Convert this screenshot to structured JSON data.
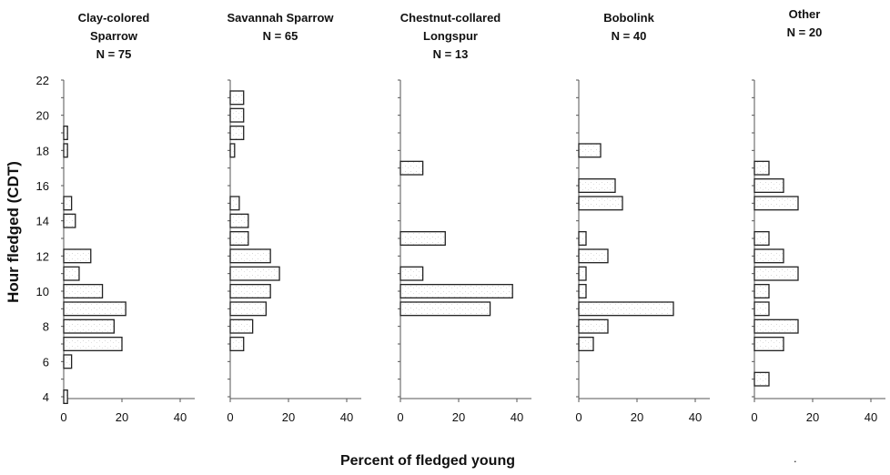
{
  "figure": {
    "ylabel": "Hour fledged (CDT)",
    "xlabel": "Percent of fledged young",
    "stray_mark": "."
  },
  "chart_data": [
    {
      "type": "bar",
      "orientation": "horizontal",
      "title_lines": [
        "Clay-colored",
        "Sparrow",
        "N = 75"
      ],
      "x": [
        4,
        6,
        7,
        8,
        9,
        10,
        11,
        12,
        14,
        15,
        18,
        19
      ],
      "values": [
        1.3,
        2.7,
        20,
        17.3,
        21.3,
        13.3,
        5.3,
        9.3,
        4,
        2.7,
        1.3,
        1.3
      ],
      "xlim": [
        0,
        45
      ],
      "xticks": [
        0,
        20,
        40
      ],
      "ylim": [
        4,
        22
      ],
      "yticks": [
        4,
        6,
        8,
        10,
        12,
        14,
        16,
        18,
        20,
        22
      ],
      "grid": false
    },
    {
      "type": "bar",
      "orientation": "horizontal",
      "title_lines": [
        "Savannah Sparrow",
        "N = 65"
      ],
      "x": [
        7,
        8,
        9,
        10,
        11,
        12,
        13,
        14,
        15,
        18,
        19,
        20,
        21
      ],
      "values": [
        4.6,
        7.7,
        12.3,
        13.8,
        16.9,
        13.8,
        6.2,
        6.2,
        3.1,
        1.5,
        4.6,
        4.6,
        4.6
      ],
      "xlim": [
        0,
        45
      ],
      "xticks": [
        0,
        20,
        40
      ],
      "ylim": [
        4,
        22
      ],
      "yticks": [
        4,
        6,
        8,
        10,
        12,
        14,
        16,
        18,
        20,
        22
      ],
      "grid": false
    },
    {
      "type": "bar",
      "orientation": "horizontal",
      "title_lines": [
        "Chestnut-collared",
        "Longspur",
        "N = 13"
      ],
      "x": [
        9,
        10,
        11,
        13,
        17
      ],
      "values": [
        30.8,
        38.5,
        7.7,
        15.4,
        7.7
      ],
      "xlim": [
        0,
        45
      ],
      "xticks": [
        0,
        20,
        40
      ],
      "ylim": [
        4,
        22
      ],
      "yticks": [
        4,
        6,
        8,
        10,
        12,
        14,
        16,
        18,
        20,
        22
      ],
      "grid": false
    },
    {
      "type": "bar",
      "orientation": "horizontal",
      "title_lines": [
        "Bobolink",
        "N = 40"
      ],
      "x": [
        7,
        8,
        9,
        10,
        11,
        12,
        13,
        15,
        16,
        18
      ],
      "values": [
        5,
        10,
        32.5,
        2.5,
        2.5,
        10,
        2.5,
        15,
        12.5,
        7.5
      ],
      "xlim": [
        0,
        45
      ],
      "xticks": [
        0,
        20,
        40
      ],
      "ylim": [
        4,
        22
      ],
      "yticks": [
        4,
        6,
        8,
        10,
        12,
        14,
        16,
        18,
        20,
        22
      ],
      "grid": false
    },
    {
      "type": "bar",
      "orientation": "horizontal",
      "title_lines": [
        "Other",
        "N = 20"
      ],
      "x": [
        5,
        7,
        8,
        9,
        10,
        11,
        12,
        13,
        15,
        16,
        17
      ],
      "values": [
        5,
        10,
        15,
        5,
        5,
        15,
        10,
        5,
        15,
        10,
        5
      ],
      "xlim": [
        0,
        45
      ],
      "xticks": [
        0,
        20,
        40
      ],
      "ylim": [
        4,
        22
      ],
      "yticks": [
        4,
        6,
        8,
        10,
        12,
        14,
        16,
        18,
        20,
        22
      ],
      "grid": false
    }
  ]
}
